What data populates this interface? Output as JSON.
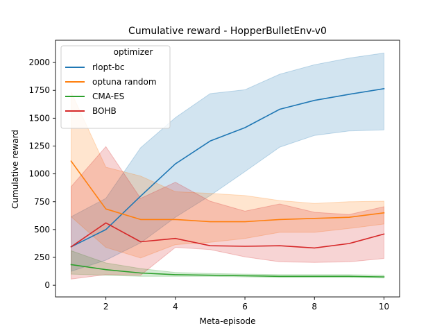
{
  "chart_data": {
    "type": "line",
    "title": "Cumulative reward - HopperBulletEnv-v0",
    "xlabel": "Meta-episode",
    "ylabel": "Cumulative reward",
    "xlim": [
      0.55,
      10.45
    ],
    "ylim": [
      -105,
      2200
    ],
    "xticks": [
      2,
      4,
      6,
      8,
      10
    ],
    "yticks": [
      0,
      250,
      500,
      750,
      1000,
      1250,
      1500,
      1750,
      2000
    ],
    "grid": false,
    "legend": {
      "title": "optimizer",
      "position": "top-left"
    },
    "x": [
      1,
      2,
      3,
      4,
      5,
      6,
      7,
      8,
      9,
      10
    ],
    "series": [
      {
        "name": "rlopt-bc",
        "color": "#1f77b4",
        "values": [
          345,
          500,
          800,
          1090,
          1295,
          1415,
          1580,
          1660,
          1715,
          1765
        ],
        "lower": [
          125,
          225,
          380,
          610,
          805,
          1020,
          1240,
          1345,
          1385,
          1395
        ],
        "upper": [
          615,
          780,
          1235,
          1505,
          1720,
          1755,
          1895,
          1980,
          2040,
          2085
        ]
      },
      {
        "name": "optuna random",
        "color": "#ff7f0e",
        "values": [
          1115,
          685,
          590,
          590,
          570,
          570,
          590,
          600,
          610,
          650
        ],
        "lower": [
          615,
          340,
          245,
          365,
          385,
          420,
          475,
          475,
          510,
          550
        ],
        "upper": [
          1735,
          1060,
          980,
          840,
          825,
          805,
          760,
          735,
          750,
          755
        ]
      },
      {
        "name": "CMA-ES",
        "color": "#2ca02c",
        "values": [
          185,
          140,
          110,
          95,
          90,
          85,
          80,
          80,
          80,
          75
        ],
        "lower": [
          100,
          90,
          80,
          80,
          80,
          75,
          70,
          70,
          70,
          65
        ],
        "upper": [
          310,
          200,
          150,
          115,
          105,
          100,
          95,
          95,
          95,
          90
        ]
      },
      {
        "name": "BOHB",
        "color": "#d62728",
        "values": [
          345,
          560,
          390,
          420,
          355,
          350,
          355,
          335,
          375,
          460
        ],
        "lower": [
          55,
          95,
          90,
          340,
          320,
          255,
          210,
          205,
          210,
          240
        ],
        "upper": [
          885,
          1245,
          780,
          925,
          755,
          665,
          730,
          655,
          635,
          705
        ]
      }
    ]
  }
}
